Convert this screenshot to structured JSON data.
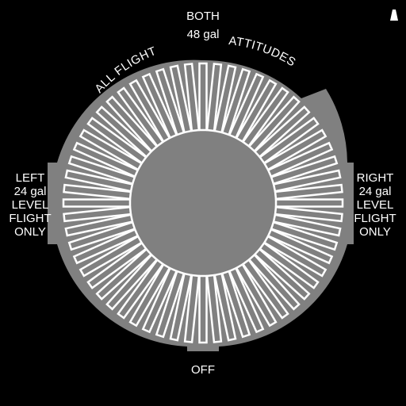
{
  "fuel_selector": {
    "top": {
      "line1": "BOTH",
      "line2": "48 gal"
    },
    "arc_left": "ALL FLIGHT",
    "arc_right": "ATTITUDES",
    "left": {
      "line1": "LEFT",
      "line2": "24 gal",
      "line3": "LEVEL",
      "line4": "FLIGHT",
      "line5": "ONLY"
    },
    "right": {
      "line1": "RIGHT",
      "line2": "24 gal",
      "line3": "LEVEL",
      "line4": "FLIGHT",
      "line5": "ONLY"
    },
    "bottom": "OFF",
    "grip_slot_count": 60,
    "colors": {
      "background": "#000000",
      "knob": "#808080",
      "text": "#ffffff",
      "grip": "#ffffff"
    }
  }
}
